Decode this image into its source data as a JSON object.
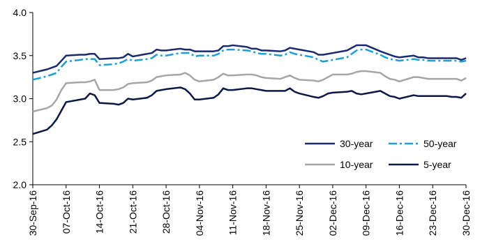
{
  "chart_data": {
    "type": "line",
    "title": "",
    "xlabel": "",
    "ylabel": "",
    "ylim": [
      2.0,
      4.0
    ],
    "y_ticks": [
      "2.0",
      "2.5",
      "3.0",
      "3.5",
      "4.0"
    ],
    "x_tick_labels": [
      "30-Sep-16",
      "07-Oct-16",
      "14-Oct-16",
      "21-Oct-16",
      "28-Oct-16",
      "04-Nov-16",
      "11-Nov-16",
      "18-Nov-16",
      "25-Nov-16",
      "02-Dec-16",
      "09-Dec-16",
      "16-Dec-16",
      "23-Dec-16",
      "30-Dec-16"
    ],
    "x_tick_dates": [
      "2016-09-30",
      "2016-10-07",
      "2016-10-14",
      "2016-10-21",
      "2016-10-28",
      "2016-11-04",
      "2016-11-11",
      "2016-11-18",
      "2016-11-25",
      "2016-12-02",
      "2016-12-09",
      "2016-12-16",
      "2016-12-23",
      "2016-12-30"
    ],
    "x_range": [
      "2016-09-30",
      "2016-12-30"
    ],
    "grid": false,
    "legend_position": "bottom-right",
    "series": [
      {
        "name": "30-year",
        "color": "#1a2a6c",
        "dash": "solid",
        "points": [
          [
            "2016-09-30",
            3.3
          ],
          [
            "2016-10-03",
            3.34
          ],
          [
            "2016-10-04",
            3.36
          ],
          [
            "2016-10-05",
            3.38
          ],
          [
            "2016-10-06",
            3.44
          ],
          [
            "2016-10-07",
            3.5
          ],
          [
            "2016-10-10",
            3.51
          ],
          [
            "2016-10-11",
            3.51
          ],
          [
            "2016-10-12",
            3.52
          ],
          [
            "2016-10-13",
            3.52
          ],
          [
            "2016-10-14",
            3.46
          ],
          [
            "2016-10-17",
            3.47
          ],
          [
            "2016-10-18",
            3.47
          ],
          [
            "2016-10-19",
            3.48
          ],
          [
            "2016-10-20",
            3.52
          ],
          [
            "2016-10-21",
            3.49
          ],
          [
            "2016-10-24",
            3.52
          ],
          [
            "2016-10-25",
            3.53
          ],
          [
            "2016-10-26",
            3.57
          ],
          [
            "2016-10-27",
            3.56
          ],
          [
            "2016-10-28",
            3.56
          ],
          [
            "2016-10-31",
            3.58
          ],
          [
            "2016-11-01",
            3.57
          ],
          [
            "2016-11-02",
            3.57
          ],
          [
            "2016-11-03",
            3.55
          ],
          [
            "2016-11-04",
            3.55
          ],
          [
            "2016-11-07",
            3.55
          ],
          [
            "2016-11-08",
            3.56
          ],
          [
            "2016-11-09",
            3.61
          ],
          [
            "2016-11-10",
            3.61
          ],
          [
            "2016-11-11",
            3.62
          ],
          [
            "2016-11-14",
            3.6
          ],
          [
            "2016-11-15",
            3.58
          ],
          [
            "2016-11-16",
            3.58
          ],
          [
            "2016-11-17",
            3.56
          ],
          [
            "2016-11-18",
            3.56
          ],
          [
            "2016-11-21",
            3.55
          ],
          [
            "2016-11-22",
            3.56
          ],
          [
            "2016-11-23",
            3.59
          ],
          [
            "2016-11-24",
            3.58
          ],
          [
            "2016-11-25",
            3.57
          ],
          [
            "2016-11-28",
            3.54
          ],
          [
            "2016-11-29",
            3.51
          ],
          [
            "2016-11-30",
            3.51
          ],
          [
            "2016-12-01",
            3.52
          ],
          [
            "2016-12-02",
            3.53
          ],
          [
            "2016-12-05",
            3.56
          ],
          [
            "2016-12-06",
            3.59
          ],
          [
            "2016-12-07",
            3.62
          ],
          [
            "2016-12-08",
            3.62
          ],
          [
            "2016-12-09",
            3.62
          ],
          [
            "2016-12-12",
            3.55
          ],
          [
            "2016-12-13",
            3.53
          ],
          [
            "2016-12-14",
            3.51
          ],
          [
            "2016-12-15",
            3.49
          ],
          [
            "2016-12-16",
            3.48
          ],
          [
            "2016-12-19",
            3.5
          ],
          [
            "2016-12-20",
            3.48
          ],
          [
            "2016-12-21",
            3.48
          ],
          [
            "2016-12-22",
            3.47
          ],
          [
            "2016-12-23",
            3.47
          ],
          [
            "2016-12-26",
            3.47
          ],
          [
            "2016-12-27",
            3.47
          ],
          [
            "2016-12-28",
            3.47
          ],
          [
            "2016-12-29",
            3.45
          ],
          [
            "2016-12-30",
            3.47
          ]
        ]
      },
      {
        "name": "50-year",
        "color": "#1aa0d8",
        "dash": "dashdot",
        "points": [
          [
            "2016-09-30",
            3.22
          ],
          [
            "2016-10-03",
            3.26
          ],
          [
            "2016-10-04",
            3.28
          ],
          [
            "2016-10-05",
            3.3
          ],
          [
            "2016-10-06",
            3.37
          ],
          [
            "2016-10-07",
            3.43
          ],
          [
            "2016-10-10",
            3.45
          ],
          [
            "2016-10-11",
            3.46
          ],
          [
            "2016-10-12",
            3.46
          ],
          [
            "2016-10-13",
            3.46
          ],
          [
            "2016-10-14",
            3.39
          ],
          [
            "2016-10-17",
            3.4
          ],
          [
            "2016-10-18",
            3.41
          ],
          [
            "2016-10-19",
            3.43
          ],
          [
            "2016-10-20",
            3.46
          ],
          [
            "2016-10-21",
            3.44
          ],
          [
            "2016-10-24",
            3.46
          ],
          [
            "2016-10-25",
            3.47
          ],
          [
            "2016-10-26",
            3.51
          ],
          [
            "2016-10-27",
            3.5
          ],
          [
            "2016-10-28",
            3.5
          ],
          [
            "2016-10-31",
            3.53
          ],
          [
            "2016-11-01",
            3.53
          ],
          [
            "2016-11-02",
            3.53
          ],
          [
            "2016-11-03",
            3.49
          ],
          [
            "2016-11-04",
            3.5
          ],
          [
            "2016-11-07",
            3.5
          ],
          [
            "2016-11-08",
            3.52
          ],
          [
            "2016-11-09",
            3.56
          ],
          [
            "2016-11-10",
            3.57
          ],
          [
            "2016-11-11",
            3.57
          ],
          [
            "2016-11-14",
            3.56
          ],
          [
            "2016-11-15",
            3.55
          ],
          [
            "2016-11-16",
            3.53
          ],
          [
            "2016-11-17",
            3.52
          ],
          [
            "2016-11-18",
            3.52
          ],
          [
            "2016-11-21",
            3.5
          ],
          [
            "2016-11-22",
            3.51
          ],
          [
            "2016-11-23",
            3.54
          ],
          [
            "2016-11-24",
            3.52
          ],
          [
            "2016-11-25",
            3.51
          ],
          [
            "2016-11-28",
            3.48
          ],
          [
            "2016-11-29",
            3.45
          ],
          [
            "2016-11-30",
            3.43
          ],
          [
            "2016-12-01",
            3.44
          ],
          [
            "2016-12-02",
            3.45
          ],
          [
            "2016-12-05",
            3.48
          ],
          [
            "2016-12-06",
            3.52
          ],
          [
            "2016-12-07",
            3.56
          ],
          [
            "2016-12-08",
            3.57
          ],
          [
            "2016-12-09",
            3.57
          ],
          [
            "2016-12-12",
            3.51
          ],
          [
            "2016-12-13",
            3.48
          ],
          [
            "2016-12-14",
            3.46
          ],
          [
            "2016-12-15",
            3.45
          ],
          [
            "2016-12-16",
            3.44
          ],
          [
            "2016-12-19",
            3.46
          ],
          [
            "2016-12-20",
            3.45
          ],
          [
            "2016-12-21",
            3.45
          ],
          [
            "2016-12-22",
            3.44
          ],
          [
            "2016-12-23",
            3.44
          ],
          [
            "2016-12-26",
            3.44
          ],
          [
            "2016-12-27",
            3.44
          ],
          [
            "2016-12-28",
            3.44
          ],
          [
            "2016-12-29",
            3.43
          ],
          [
            "2016-12-30",
            3.44
          ]
        ]
      },
      {
        "name": "10-year",
        "color": "#a6a6a6",
        "dash": "solid",
        "points": [
          [
            "2016-09-30",
            2.85
          ],
          [
            "2016-10-03",
            2.89
          ],
          [
            "2016-10-04",
            2.92
          ],
          [
            "2016-10-05",
            2.99
          ],
          [
            "2016-10-06",
            3.1
          ],
          [
            "2016-10-07",
            3.18
          ],
          [
            "2016-10-10",
            3.19
          ],
          [
            "2016-10-11",
            3.19
          ],
          [
            "2016-10-12",
            3.2
          ],
          [
            "2016-10-13",
            3.22
          ],
          [
            "2016-10-14",
            3.1
          ],
          [
            "2016-10-17",
            3.1
          ],
          [
            "2016-10-18",
            3.11
          ],
          [
            "2016-10-19",
            3.13
          ],
          [
            "2016-10-20",
            3.17
          ],
          [
            "2016-10-21",
            3.18
          ],
          [
            "2016-10-24",
            3.19
          ],
          [
            "2016-10-25",
            3.21
          ],
          [
            "2016-10-26",
            3.25
          ],
          [
            "2016-10-27",
            3.26
          ],
          [
            "2016-10-28",
            3.27
          ],
          [
            "2016-10-31",
            3.28
          ],
          [
            "2016-11-01",
            3.3
          ],
          [
            "2016-11-02",
            3.27
          ],
          [
            "2016-11-03",
            3.22
          ],
          [
            "2016-11-04",
            3.2
          ],
          [
            "2016-11-07",
            3.22
          ],
          [
            "2016-11-08",
            3.25
          ],
          [
            "2016-11-09",
            3.29
          ],
          [
            "2016-11-10",
            3.27
          ],
          [
            "2016-11-11",
            3.27
          ],
          [
            "2016-11-14",
            3.28
          ],
          [
            "2016-11-15",
            3.28
          ],
          [
            "2016-11-16",
            3.27
          ],
          [
            "2016-11-17",
            3.25
          ],
          [
            "2016-11-18",
            3.24
          ],
          [
            "2016-11-21",
            3.23
          ],
          [
            "2016-11-22",
            3.25
          ],
          [
            "2016-11-23",
            3.27
          ],
          [
            "2016-11-24",
            3.24
          ],
          [
            "2016-11-25",
            3.22
          ],
          [
            "2016-11-28",
            3.21
          ],
          [
            "2016-11-29",
            3.2
          ],
          [
            "2016-11-30",
            3.22
          ],
          [
            "2016-12-01",
            3.25
          ],
          [
            "2016-12-02",
            3.28
          ],
          [
            "2016-12-05",
            3.28
          ],
          [
            "2016-12-06",
            3.29
          ],
          [
            "2016-12-07",
            3.31
          ],
          [
            "2016-12-08",
            3.32
          ],
          [
            "2016-12-09",
            3.32
          ],
          [
            "2016-12-12",
            3.3
          ],
          [
            "2016-12-13",
            3.26
          ],
          [
            "2016-12-14",
            3.23
          ],
          [
            "2016-12-15",
            3.22
          ],
          [
            "2016-12-16",
            3.2
          ],
          [
            "2016-12-19",
            3.25
          ],
          [
            "2016-12-20",
            3.25
          ],
          [
            "2016-12-21",
            3.24
          ],
          [
            "2016-12-22",
            3.23
          ],
          [
            "2016-12-23",
            3.23
          ],
          [
            "2016-12-26",
            3.23
          ],
          [
            "2016-12-27",
            3.23
          ],
          [
            "2016-12-28",
            3.23
          ],
          [
            "2016-12-29",
            3.21
          ],
          [
            "2016-12-30",
            3.24
          ]
        ]
      },
      {
        "name": "5-year",
        "color": "#0b1745",
        "dash": "solid",
        "points": [
          [
            "2016-09-30",
            2.59
          ],
          [
            "2016-10-03",
            2.64
          ],
          [
            "2016-10-04",
            2.69
          ],
          [
            "2016-10-05",
            2.76
          ],
          [
            "2016-10-06",
            2.86
          ],
          [
            "2016-10-07",
            2.96
          ],
          [
            "2016-10-10",
            2.99
          ],
          [
            "2016-10-11",
            3.0
          ],
          [
            "2016-10-12",
            3.06
          ],
          [
            "2016-10-13",
            3.04
          ],
          [
            "2016-10-14",
            2.95
          ],
          [
            "2016-10-17",
            2.94
          ],
          [
            "2016-10-18",
            2.93
          ],
          [
            "2016-10-19",
            2.95
          ],
          [
            "2016-10-20",
            3.0
          ],
          [
            "2016-10-21",
            2.99
          ],
          [
            "2016-10-24",
            3.01
          ],
          [
            "2016-10-25",
            3.04
          ],
          [
            "2016-10-26",
            3.09
          ],
          [
            "2016-10-27",
            3.1
          ],
          [
            "2016-10-28",
            3.11
          ],
          [
            "2016-10-31",
            3.13
          ],
          [
            "2016-11-01",
            3.11
          ],
          [
            "2016-11-02",
            3.06
          ],
          [
            "2016-11-03",
            2.99
          ],
          [
            "2016-11-04",
            2.99
          ],
          [
            "2016-11-07",
            3.01
          ],
          [
            "2016-11-08",
            3.05
          ],
          [
            "2016-11-09",
            3.12
          ],
          [
            "2016-11-10",
            3.1
          ],
          [
            "2016-11-11",
            3.1
          ],
          [
            "2016-11-14",
            3.12
          ],
          [
            "2016-11-15",
            3.12
          ],
          [
            "2016-11-16",
            3.11
          ],
          [
            "2016-11-17",
            3.1
          ],
          [
            "2016-11-18",
            3.09
          ],
          [
            "2016-11-21",
            3.09
          ],
          [
            "2016-11-22",
            3.09
          ],
          [
            "2016-11-23",
            3.12
          ],
          [
            "2016-11-24",
            3.08
          ],
          [
            "2016-11-25",
            3.06
          ],
          [
            "2016-11-28",
            3.02
          ],
          [
            "2016-11-29",
            3.01
          ],
          [
            "2016-11-30",
            3.03
          ],
          [
            "2016-12-01",
            3.06
          ],
          [
            "2016-12-02",
            3.07
          ],
          [
            "2016-12-05",
            3.08
          ],
          [
            "2016-12-06",
            3.09
          ],
          [
            "2016-12-07",
            3.06
          ],
          [
            "2016-12-08",
            3.05
          ],
          [
            "2016-12-09",
            3.06
          ],
          [
            "2016-12-12",
            3.09
          ],
          [
            "2016-12-13",
            3.06
          ],
          [
            "2016-12-14",
            3.03
          ],
          [
            "2016-12-15",
            3.02
          ],
          [
            "2016-12-16",
            3.0
          ],
          [
            "2016-12-19",
            3.04
          ],
          [
            "2016-12-20",
            3.03
          ],
          [
            "2016-12-21",
            3.03
          ],
          [
            "2016-12-22",
            3.03
          ],
          [
            "2016-12-23",
            3.03
          ],
          [
            "2016-12-26",
            3.03
          ],
          [
            "2016-12-27",
            3.02
          ],
          [
            "2016-12-28",
            3.02
          ],
          [
            "2016-12-29",
            3.01
          ],
          [
            "2016-12-30",
            3.06
          ]
        ]
      }
    ],
    "legend": [
      {
        "label": "30-year",
        "color": "#1a2a6c",
        "dash": "solid"
      },
      {
        "label": "50-year",
        "color": "#1aa0d8",
        "dash": "dashdot"
      },
      {
        "label": "10-year",
        "color": "#a6a6a6",
        "dash": "solid"
      },
      {
        "label": "5-year",
        "color": "#0b1745",
        "dash": "solid"
      }
    ]
  }
}
